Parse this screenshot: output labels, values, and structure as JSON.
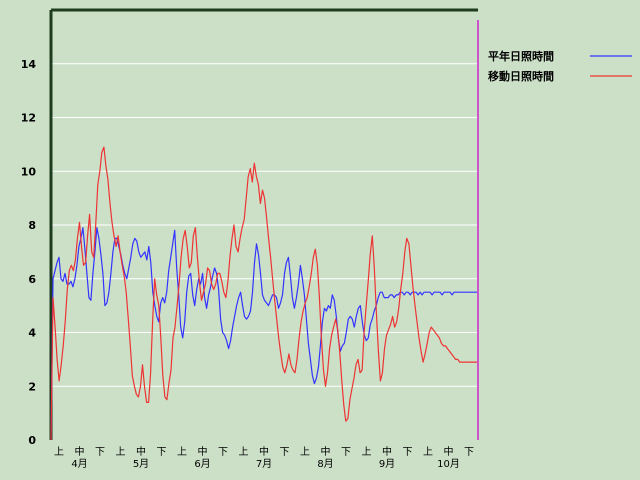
{
  "chart_data": {
    "type": "line",
    "title": "",
    "xlabel": "",
    "ylabel": "",
    "ylim": [
      0,
      16
    ],
    "yticks": [
      0,
      2,
      4,
      6,
      8,
      10,
      12,
      14
    ],
    "grid": "horizontal",
    "legend_position": "top-right",
    "decade_labels": [
      "上",
      "中",
      "下",
      "上",
      "中",
      "下",
      "上",
      "中",
      "下",
      "上",
      "中",
      "下",
      "上",
      "中",
      "下",
      "上",
      "中",
      "下",
      "上",
      "中",
      "下"
    ],
    "month_labels": [
      "4月",
      "5月",
      "6月",
      "7月",
      "8月",
      "9月",
      "10月"
    ],
    "x_start": "04-01",
    "x_end": "10-31",
    "colors": {
      "background": "#cce0c8",
      "grid": "#ffffff",
      "frame": "#1e3c1e",
      "blue": "#3333ff",
      "red": "#ee3333",
      "marker": "#cc55cc"
    },
    "series": [
      {
        "name": "平年日照時間",
        "color": "#3333ff",
        "values": [
          0,
          6.0,
          6.3,
          6.6,
          6.8,
          6.0,
          5.9,
          6.2,
          5.8,
          5.8,
          5.9,
          5.7,
          6.0,
          6.5,
          7.2,
          7.5,
          7.9,
          7.1,
          6.2,
          5.3,
          5.2,
          6.2,
          7.0,
          7.9,
          7.5,
          6.9,
          6.2,
          5.0,
          5.1,
          5.5,
          6.2,
          7.0,
          7.5,
          7.5,
          7.2,
          6.9,
          6.5,
          6.2,
          6.0,
          6.4,
          6.8,
          7.3,
          7.5,
          7.4,
          7.0,
          6.8,
          6.9,
          7.0,
          6.7,
          7.2,
          6.6,
          5.5,
          5.0,
          4.6,
          4.4,
          5.1,
          5.3,
          5.1,
          5.5,
          6.3,
          6.8,
          7.3,
          7.8,
          6.4,
          5.4,
          4.2,
          3.8,
          4.4,
          5.5,
          6.1,
          6.2,
          5.4,
          5.0,
          5.6,
          6.0,
          5.8,
          6.2,
          5.3,
          4.9,
          5.4,
          5.7,
          6.1,
          6.4,
          6.2,
          5.6,
          4.5,
          4.0,
          3.9,
          3.7,
          3.4,
          3.7,
          4.2,
          4.6,
          5.0,
          5.3,
          5.5,
          5.0,
          4.6,
          4.5,
          4.6,
          4.8,
          5.5,
          6.6,
          7.3,
          6.9,
          6.2,
          5.4,
          5.2,
          5.1,
          5.0,
          5.2,
          5.4,
          5.4,
          5.3,
          4.9,
          5.1,
          5.4,
          6.2,
          6.6,
          6.8,
          6.1,
          5.3,
          4.9,
          5.3,
          5.8,
          6.5,
          6.0,
          5.4,
          4.5,
          3.6,
          3.0,
          2.4,
          2.1,
          2.3,
          2.7,
          3.5,
          4.4,
          4.9,
          4.8,
          5.0,
          4.9,
          5.4,
          5.2,
          4.6,
          3.8,
          3.3,
          3.5,
          3.6,
          4.0,
          4.5,
          4.6,
          4.5,
          4.2,
          4.6,
          4.9,
          5.0,
          4.4,
          3.9,
          3.7,
          3.8,
          4.3,
          4.5,
          4.8,
          5.0,
          5.3,
          5.5,
          5.5,
          5.3,
          5.3,
          5.3,
          5.4,
          5.4,
          5.3,
          5.4,
          5.4,
          5.5,
          5.5,
          5.4,
          5.5,
          5.5,
          5.4,
          5.5,
          5.5,
          5.5,
          5.4,
          5.5,
          5.4,
          5.5,
          5.5,
          5.5,
          5.5,
          5.4,
          5.5,
          5.5,
          5.5,
          5.5,
          5.4,
          5.5,
          5.5,
          5.5,
          5.5,
          5.4,
          5.5,
          5.5,
          5.5,
          5.5,
          5.5,
          5.5,
          5.5,
          5.5,
          5.5,
          5.5,
          5.5,
          5.5,
          5.5
        ]
      },
      {
        "name": "移動日照時間",
        "color": "#ee3333",
        "values": [
          0,
          5.3,
          4.2,
          3.0,
          2.2,
          2.8,
          3.5,
          4.4,
          5.6,
          6.3,
          6.5,
          6.3,
          6.7,
          7.5,
          8.1,
          7.2,
          6.5,
          6.6,
          7.6,
          8.4,
          7.0,
          6.8,
          8.0,
          9.5,
          10.0,
          10.7,
          10.9,
          10.2,
          9.7,
          8.8,
          8.1,
          7.6,
          7.2,
          7.6,
          7.0,
          6.5,
          6.1,
          5.5,
          4.5,
          3.5,
          2.4,
          2.0,
          1.7,
          1.6,
          2.0,
          2.8,
          2.0,
          1.4,
          1.4,
          2.5,
          4.5,
          6.0,
          5.4,
          5.0,
          3.8,
          2.4,
          1.6,
          1.5,
          2.1,
          2.6,
          3.8,
          4.2,
          5.0,
          5.8,
          6.8,
          7.5,
          7.8,
          7.2,
          6.4,
          6.6,
          7.6,
          7.9,
          6.8,
          5.9,
          5.2,
          5.5,
          5.8,
          6.4,
          6.3,
          5.8,
          5.6,
          5.8,
          6.2,
          6.2,
          5.9,
          5.5,
          5.3,
          5.9,
          6.8,
          7.5,
          8.0,
          7.2,
          7.0,
          7.5,
          7.9,
          8.2,
          9.0,
          9.8,
          10.1,
          9.6,
          10.3,
          9.8,
          9.5,
          8.8,
          9.3,
          9.0,
          8.3,
          7.5,
          6.8,
          6.0,
          5.2,
          4.5,
          3.8,
          3.2,
          2.7,
          2.5,
          2.8,
          3.2,
          2.8,
          2.6,
          2.5,
          3.0,
          3.8,
          4.4,
          4.8,
          5.1,
          5.3,
          5.7,
          6.2,
          6.8,
          7.1,
          6.5,
          5.3,
          3.8,
          2.6,
          2.0,
          2.5,
          3.4,
          3.9,
          4.2,
          4.5,
          4.1,
          3.3,
          2.2,
          1.3,
          0.7,
          0.8,
          1.5,
          1.9,
          2.3,
          2.8,
          3.0,
          2.5,
          2.6,
          4.0,
          5.0,
          5.9,
          6.9,
          7.6,
          6.4,
          4.8,
          3.3,
          2.2,
          2.5,
          3.4,
          3.9,
          4.1,
          4.3,
          4.6,
          4.2,
          4.4,
          4.9,
          5.6,
          6.2,
          7.0,
          7.5,
          7.3,
          6.5,
          5.7,
          5.0,
          4.4,
          3.8,
          3.3,
          2.9,
          3.2,
          3.6,
          4.0,
          4.2,
          4.1,
          4.0,
          3.9,
          3.8,
          3.6,
          3.5,
          3.5,
          3.4,
          3.3,
          3.2,
          3.1,
          3.0,
          3.0,
          2.9,
          2.9,
          2.9,
          2.9,
          2.9,
          2.9,
          2.9,
          2.9,
          2.9,
          2.9
        ]
      }
    ]
  }
}
